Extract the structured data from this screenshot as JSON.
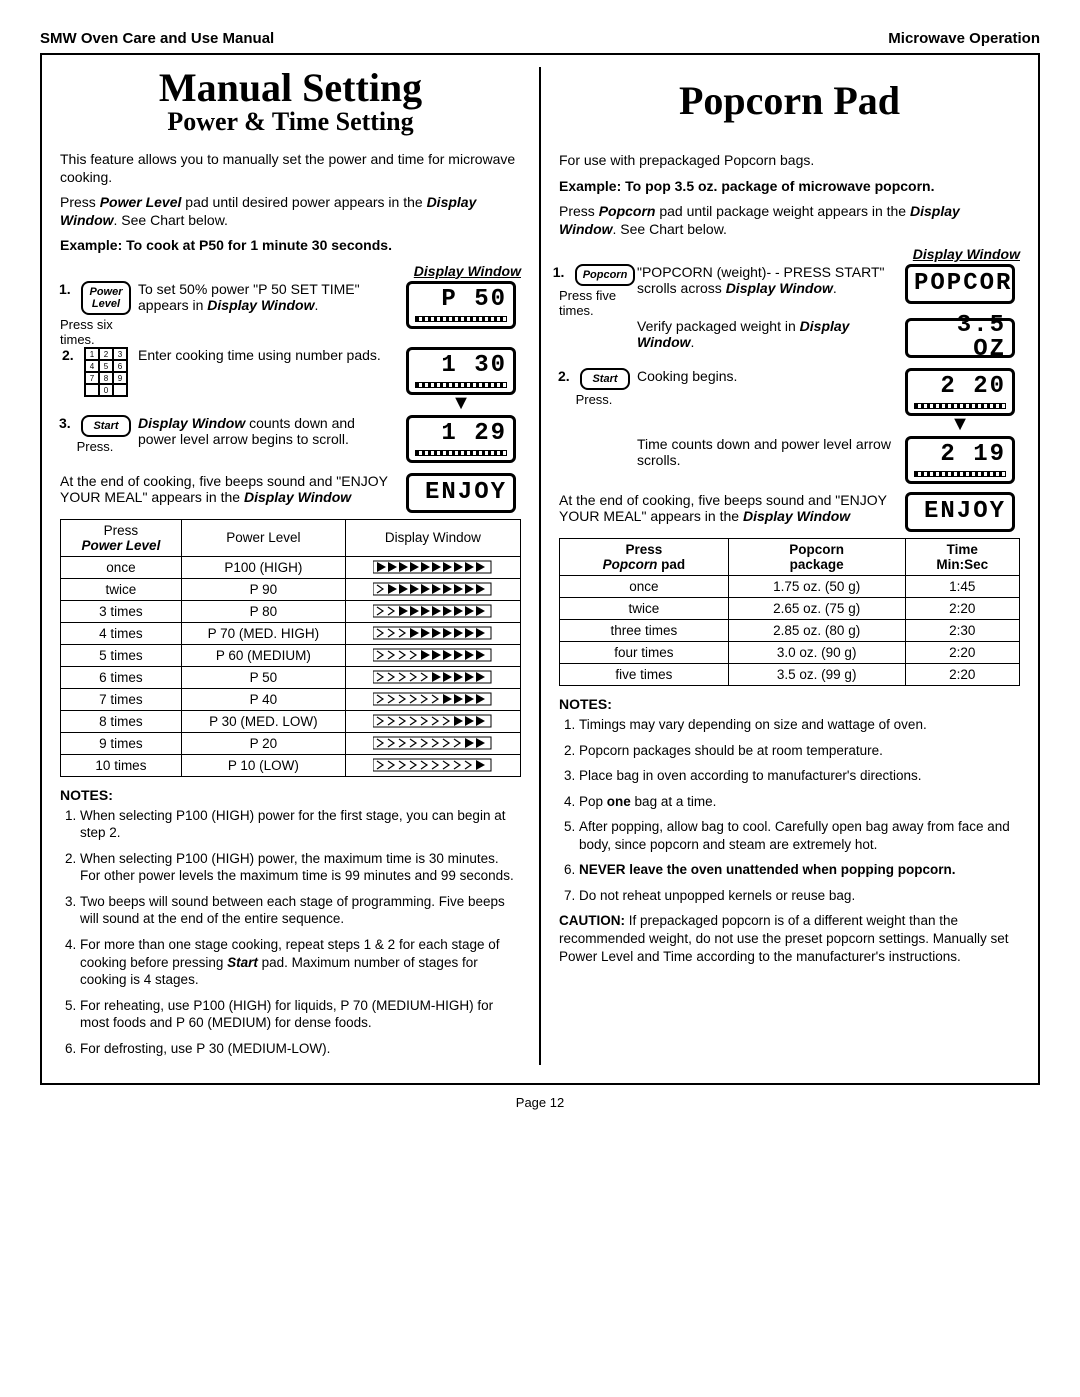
{
  "header": {
    "left": "SMW Oven Care and Use Manual",
    "right": "Microwave Operation"
  },
  "pageNum": "Page 12",
  "left": {
    "title": "Manual Setting",
    "subtitle": "Power & Time Setting",
    "intro1": "This feature allows you to manually set the power and time for microwave cooking.",
    "intro2a": "Press ",
    "intro2b": "Power Level",
    "intro2c": " pad until desired power appears in the ",
    "intro2d": "Display Window",
    "intro2e": ".  See Chart below.",
    "example": "Example:  To cook at P50 for 1 minute 30 seconds.",
    "dwLabel": "Display Window",
    "steps": [
      {
        "num": "1.",
        "padLine1": "Power",
        "padLine2": "Level",
        "below": "Press six times.",
        "textA": "To set 50% power \"P 50    SET TIME\" appears in ",
        "textB": "Display Window",
        "textC": ".",
        "lcd": "P   50"
      },
      {
        "num": "2.",
        "below": "",
        "textA": "Enter cooking time using number pads.",
        "lcd": "1 30"
      },
      {
        "num": "3.",
        "pad": "Start",
        "below": "Press.",
        "textA1": "Display Window",
        "textA2": " counts down and power level arrow begins to scroll.",
        "lcd": "1 29"
      }
    ],
    "endA": "At the end of cooking, five beeps sound and \"ENJOY YOUR MEAL\" appears in the ",
    "endB": "Display Window",
    "endLcd": "ENJOY",
    "table": {
      "h1a": "Press",
      "h1b": "Power Level",
      "h2": "Power Level",
      "h3": "Display Window",
      "rows": [
        {
          "press": "once",
          "level": "P100 (HIGH)",
          "fill": 10
        },
        {
          "press": "twice",
          "level": "P  90",
          "fill": 9
        },
        {
          "press": "3 times",
          "level": "P  80",
          "fill": 8
        },
        {
          "press": "4 times",
          "level": "P  70 (MED. HIGH)",
          "fill": 7
        },
        {
          "press": "5 times",
          "level": "P  60 (MEDIUM)",
          "fill": 6
        },
        {
          "press": "6 times",
          "level": "P  50",
          "fill": 5
        },
        {
          "press": "7 times",
          "level": "P  40",
          "fill": 4
        },
        {
          "press": "8 times",
          "level": "P  30 (MED. LOW)",
          "fill": 3
        },
        {
          "press": "9 times",
          "level": "P  20",
          "fill": 2
        },
        {
          "press": "10 times",
          "level": "P  10 (LOW)",
          "fill": 1
        }
      ]
    },
    "notesH": "NOTES:",
    "notes": [
      "When selecting P100 (HIGH) power for the first stage, you can begin at step 2.",
      "When selecting P100 (HIGH) power, the maximum time is 30 minutes. For other power levels the maximum time is 99 minutes and 99 seconds.",
      "Two beeps will sound between each stage of programming.  Five beeps will sound at the end of the entire sequence.",
      "For more than one stage cooking, repeat steps 1 & 2 for each stage of cooking before pressing Start pad. Maximum number of stages for cooking is 4 stages.",
      "For reheating, use P100 (HIGH) for liquids, P 70 (MEDIUM-HIGH) for most foods and P 60 (MEDIUM) for dense foods.",
      "For defrosting, use P 30 (MEDIUM-LOW)."
    ]
  },
  "right": {
    "title": "Popcorn Pad",
    "intro": "For use with prepackaged Popcorn bags.",
    "example": "Example: To pop 3.5 oz. package of microwave popcorn.",
    "pressA": "Press ",
    "pressB": "Popcorn",
    "pressC": " pad until package weight appears in the ",
    "pressD": "Display Window",
    "pressE": ".  See Chart below.",
    "dwLabel": "Display Window",
    "step1": {
      "num": "1.",
      "pad": "Popcorn",
      "below": "Press five times.",
      "textA": "\"POPCORN (weight)- - PRESS START\" scrolls across ",
      "textB": "Display Window",
      "textC": ".",
      "lcd1": "POPCOR",
      "verifyA": "Verify packaged weight in ",
      "verifyB": "Display Window",
      "verifyC": ".",
      "lcd2": "3.5   OZ"
    },
    "step2": {
      "num": "2.",
      "pad": "Start",
      "below": "Press.",
      "text": "Cooking begins.",
      "lcd1": "2 20",
      "count": "Time counts down and power level arrow scrolls.",
      "lcd2": "2 19"
    },
    "endA": "At the end of cooking, five beeps sound and \"ENJOY YOUR MEAL\" appears in the ",
    "endB": "Display Window",
    "endLcd": "ENJOY",
    "table": {
      "h1a": "Press",
      "h1b": "Popcorn",
      "h1c": " pad",
      "h2a": "Popcorn",
      "h2b": "package",
      "h3a": "Time",
      "h3b": "Min:Sec",
      "rows": [
        {
          "press": "once",
          "pkg": "1.75 oz. (50 g)",
          "time": "1:45"
        },
        {
          "press": "twice",
          "pkg": "2.65 oz. (75 g)",
          "time": "2:20"
        },
        {
          "press": "three times",
          "pkg": "2.85 oz. (80 g)",
          "time": "2:30"
        },
        {
          "press": "four times",
          "pkg": "3.0 oz. (90 g)",
          "time": "2:20"
        },
        {
          "press": "five times",
          "pkg": "3.5 oz. (99 g)",
          "time": "2:20"
        }
      ]
    },
    "notesH": "NOTES:",
    "notes": [
      "Timings may vary depending on size and wattage of oven.",
      "Popcorn packages should be at room temperature.",
      "Place bag in oven according to manufacturer's directions.",
      "Pop one bag at a time.",
      "After popping, allow bag to cool.  Carefully open bag away from face and body, since popcorn and steam are extremely hot.",
      "NEVER leave the oven unattended when popping popcorn.",
      "Do not reheat unpopped kernels or reuse bag."
    ],
    "cautionA": "CAUTION:",
    "cautionB": " If prepackaged popcorn is of a different weight than the recommended weight, do not use the preset popcorn settings. Manually set Power Level and Time according to the manufacturer's instructions."
  }
}
